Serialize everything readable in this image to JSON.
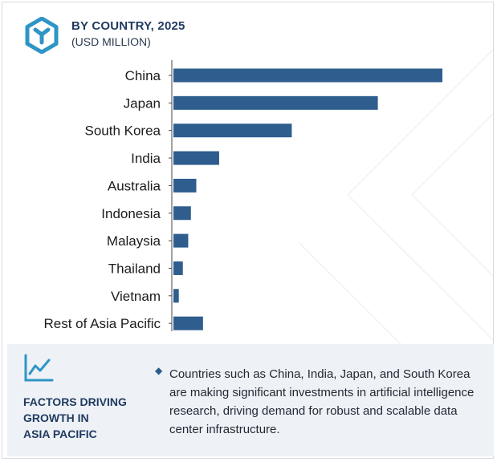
{
  "header": {
    "title": "BY COUNTRY, 2025",
    "subtitle": "(USD MILLION)",
    "logo_icon": "hexagon-y-logo-icon"
  },
  "colors": {
    "bar": "#2e5d8e",
    "accent": "#2e95c6",
    "text": "#1f3a5f",
    "footer_bg": "#eef1f6"
  },
  "chart_data": {
    "type": "bar",
    "orientation": "horizontal",
    "categories": [
      "China",
      "Japan",
      "South Korea",
      "India",
      "Australia",
      "Indonesia",
      "Malaysia",
      "Thailand",
      "Vietnam",
      "Rest of Asia Pacific"
    ],
    "values": [
      100,
      76,
      44,
      17,
      8.5,
      6.5,
      5.5,
      3.5,
      2,
      11
    ],
    "title": "BY COUNTRY, 2025",
    "subtitle": "(USD MILLION)",
    "xlabel": "",
    "ylabel": "",
    "xlim": [
      0,
      100
    ],
    "grid": false,
    "legend": "none"
  },
  "footer": {
    "icon": "trend-line-icon",
    "title": "FACTORS DRIVING\nGROWTH IN\nASIA PACIFIC",
    "bullet_icon": "diamond-bullet-icon",
    "text": "Countries such as China, India, Japan, and South Korea are making significant investments in artificial intelligence research, driving demand for robust and scalable data center infrastructure."
  }
}
